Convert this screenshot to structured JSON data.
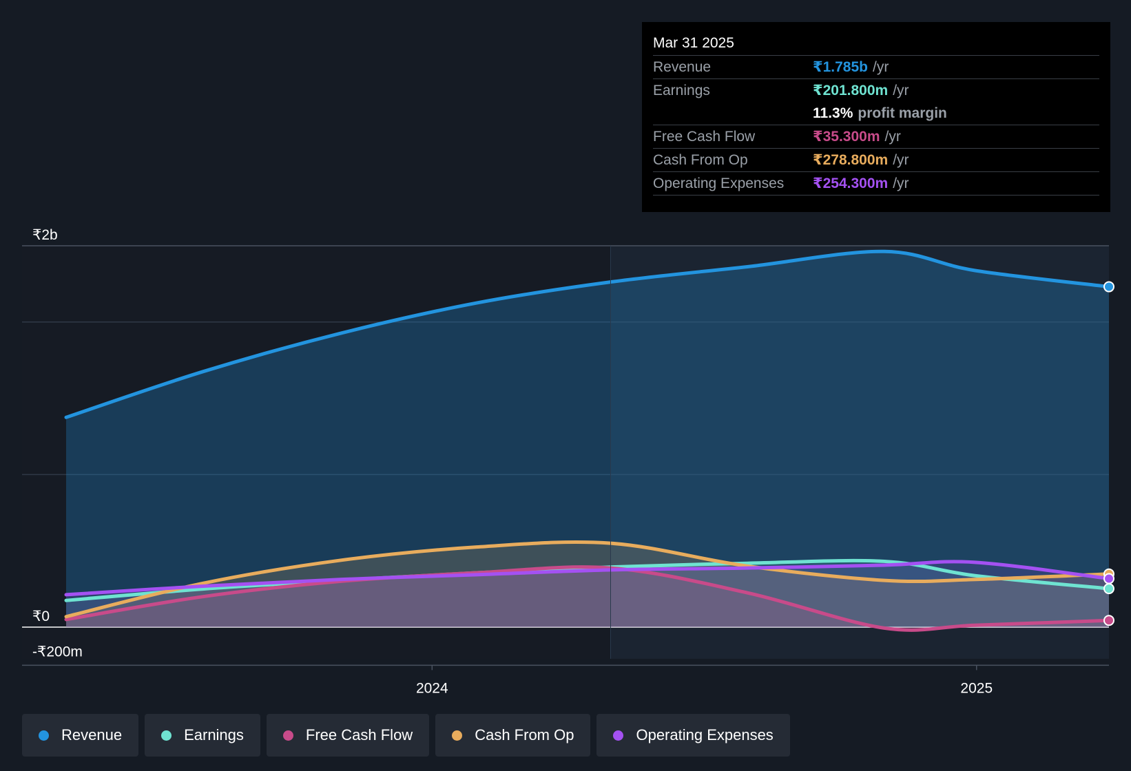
{
  "tooltip": {
    "date": "Mar 31 2025",
    "rows": [
      {
        "label": "Revenue",
        "value": "₹1.785b",
        "unit": "/yr",
        "color": "#2394df"
      },
      {
        "label": "Earnings",
        "value": "₹201.800m",
        "unit": "/yr",
        "color": "#6fe3d1"
      },
      {
        "label": "Free Cash Flow",
        "value": "₹35.300m",
        "unit": "/yr",
        "color": "#c84b8a"
      },
      {
        "label": "Cash From Op",
        "value": "₹278.800m",
        "unit": "/yr",
        "color": "#e8ac5d"
      },
      {
        "label": "Operating Expenses",
        "value": "₹254.300m",
        "unit": "/yr",
        "color": "#a451f2"
      }
    ],
    "profit_margin_value": "11.3%",
    "profit_margin_label": "profit margin"
  },
  "legend": [
    {
      "label": "Revenue",
      "color": "#2394df"
    },
    {
      "label": "Earnings",
      "color": "#6fe3d1"
    },
    {
      "label": "Free Cash Flow",
      "color": "#c84b8a"
    },
    {
      "label": "Cash From Op",
      "color": "#e8ac5d"
    },
    {
      "label": "Operating Expenses",
      "color": "#a451f2"
    }
  ],
  "chart_data": {
    "type": "area",
    "title": "",
    "xlabel": "",
    "ylabel": "",
    "y_tick_labels": [
      "₹2b",
      "₹0",
      "-₹200m"
    ],
    "x_tick_labels": [
      "2024",
      "2025"
    ],
    "x_ticks": [
      "2024-01-01",
      "2025-01-01"
    ],
    "ylim": [
      -200,
      2000
    ],
    "xlim": [
      "2023-04-30",
      "2025-03-31"
    ],
    "highlight_start": "2024-04-30",
    "grid": true,
    "units": "₹m",
    "x": [
      "2023-04-30",
      "2023-07-31",
      "2023-10-31",
      "2024-01-31",
      "2024-04-30",
      "2024-07-31",
      "2024-10-31",
      "2024-12-31",
      "2025-03-31"
    ],
    "series": [
      {
        "name": "Revenue",
        "color": "#2394df",
        "values": [
          1100,
          1340,
          1540,
          1700,
          1810,
          1890,
          1970,
          1870,
          1785
        ]
      },
      {
        "name": "Earnings",
        "color": "#6fe3d1",
        "values": [
          140,
          200,
          245,
          285,
          315,
          335,
          345,
          270,
          201.8
        ]
      },
      {
        "name": "Free Cash Flow",
        "color": "#c84b8a",
        "values": [
          40,
          160,
          240,
          285,
          310,
          180,
          -5,
          10,
          35.3
        ]
      },
      {
        "name": "Cash From Op",
        "color": "#e8ac5d",
        "values": [
          55,
          230,
          350,
          420,
          440,
          320,
          245,
          250,
          278.8
        ]
      },
      {
        "name": "Operating Expenses",
        "color": "#a451f2",
        "values": [
          170,
          215,
          250,
          275,
          300,
          310,
          325,
          340,
          254.3
        ]
      }
    ]
  }
}
